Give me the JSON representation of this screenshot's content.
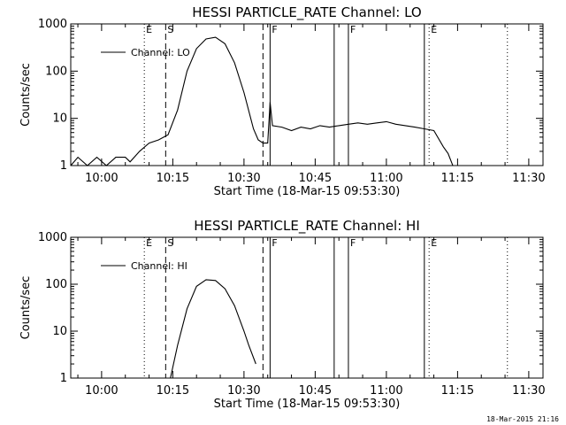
{
  "chart_data": [
    {
      "type": "line",
      "title": "HESSI PARTICLE_RATE Channel: LO",
      "xlabel": "Start Time (18-Mar-15 09:53:30)",
      "ylabel": "Counts/sec",
      "yscale": "log",
      "ylim": [
        1,
        1000
      ],
      "xlim": [
        "09:53:30",
        "11:33:00"
      ],
      "xticks": [
        "10:00",
        "10:15",
        "10:30",
        "10:45",
        "11:00",
        "11:15",
        "11:30"
      ],
      "yticks": [
        "1",
        "10",
        "100",
        "1000"
      ],
      "legend": "top-left",
      "grid": false,
      "markers": [
        {
          "time": "10:09:00",
          "style": "dotted",
          "label": "E"
        },
        {
          "time": "10:13:30",
          "style": "dashed",
          "label": "S"
        },
        {
          "time": "10:34:00",
          "style": "dashed",
          "label": ""
        },
        {
          "time": "10:35:30",
          "style": "solid",
          "label": "F"
        },
        {
          "time": "10:49:00",
          "style": "solid",
          "label": ""
        },
        {
          "time": "10:52:00",
          "style": "solid",
          "label": "F"
        },
        {
          "time": "11:08:00",
          "style": "solid",
          "label": ""
        },
        {
          "time": "11:09:00",
          "style": "dotted",
          "label": "E"
        },
        {
          "time": "11:25:30",
          "style": "dotted",
          "label": ""
        }
      ],
      "series": [
        {
          "name": "Channel: LO",
          "x": [
            "09:53:30",
            "09:55",
            "09:57",
            "09:59",
            "10:01",
            "10:03",
            "10:05",
            "10:06",
            "10:08",
            "10:10",
            "10:12",
            "10:14",
            "10:16",
            "10:18",
            "10:20",
            "10:22",
            "10:24",
            "10:26",
            "10:28",
            "10:30",
            "10:32",
            "10:33",
            "10:34",
            "10:35",
            "10:35:30",
            "10:36",
            "10:38",
            "10:40",
            "10:42",
            "10:44",
            "10:46",
            "10:48",
            "10:50",
            "10:52",
            "10:54",
            "10:56",
            "10:58",
            "11:00",
            "11:02",
            "11:04",
            "11:06",
            "11:08",
            "11:10",
            "11:12",
            "11:13",
            "11:14",
            "11:15",
            "11:17",
            "11:19",
            "11:21",
            "11:23",
            "11:25",
            "11:27",
            "11:29",
            "11:31",
            "11:33"
          ],
          "y": [
            1,
            1.5,
            1,
            1.5,
            1,
            1.5,
            1.5,
            1.2,
            2,
            3,
            3.5,
            4.5,
            15,
            100,
            300,
            480,
            520,
            380,
            150,
            35,
            6,
            3.5,
            3,
            3,
            22,
            7,
            6.5,
            5.5,
            6.5,
            6,
            7,
            6.5,
            7,
            7.5,
            8,
            7.5,
            8,
            8.5,
            7.5,
            7,
            6.5,
            6,
            5.5,
            2.5,
            1.8,
            1,
            1,
            1,
            1,
            1,
            1,
            1,
            1,
            1,
            1,
            1
          ]
        }
      ]
    },
    {
      "type": "line",
      "title": "HESSI PARTICLE_RATE Channel: HI",
      "xlabel": "Start Time (18-Mar-15 09:53:30)",
      "ylabel": "Counts/sec",
      "yscale": "log",
      "ylim": [
        1,
        1000
      ],
      "xlim": [
        "09:53:30",
        "11:33:00"
      ],
      "xticks": [
        "10:00",
        "10:15",
        "10:30",
        "10:45",
        "11:00",
        "11:15",
        "11:30"
      ],
      "yticks": [
        "1",
        "10",
        "100",
        "1000"
      ],
      "legend": "top-left",
      "grid": false,
      "markers": [
        {
          "time": "10:09:00",
          "style": "dotted",
          "label": "E"
        },
        {
          "time": "10:13:30",
          "style": "dashed",
          "label": "S"
        },
        {
          "time": "10:34:00",
          "style": "dashed",
          "label": ""
        },
        {
          "time": "10:35:30",
          "style": "solid",
          "label": "F"
        },
        {
          "time": "10:49:00",
          "style": "solid",
          "label": ""
        },
        {
          "time": "10:52:00",
          "style": "solid",
          "label": "F"
        },
        {
          "time": "11:08:00",
          "style": "solid",
          "label": ""
        },
        {
          "time": "11:09:00",
          "style": "dotted",
          "label": "E"
        },
        {
          "time": "11:25:30",
          "style": "dotted",
          "label": ""
        }
      ],
      "series": [
        {
          "name": "Channel: HI",
          "x": [
            "10:14:30",
            "10:16",
            "10:18",
            "10:20",
            "10:22",
            "10:24",
            "10:26",
            "10:28",
            "10:30",
            "10:31",
            "10:32:30"
          ],
          "y": [
            1,
            5,
            30,
            90,
            125,
            120,
            80,
            35,
            10,
            5,
            2
          ]
        }
      ]
    }
  ],
  "timestamp": "18-Mar-2015 21:16"
}
